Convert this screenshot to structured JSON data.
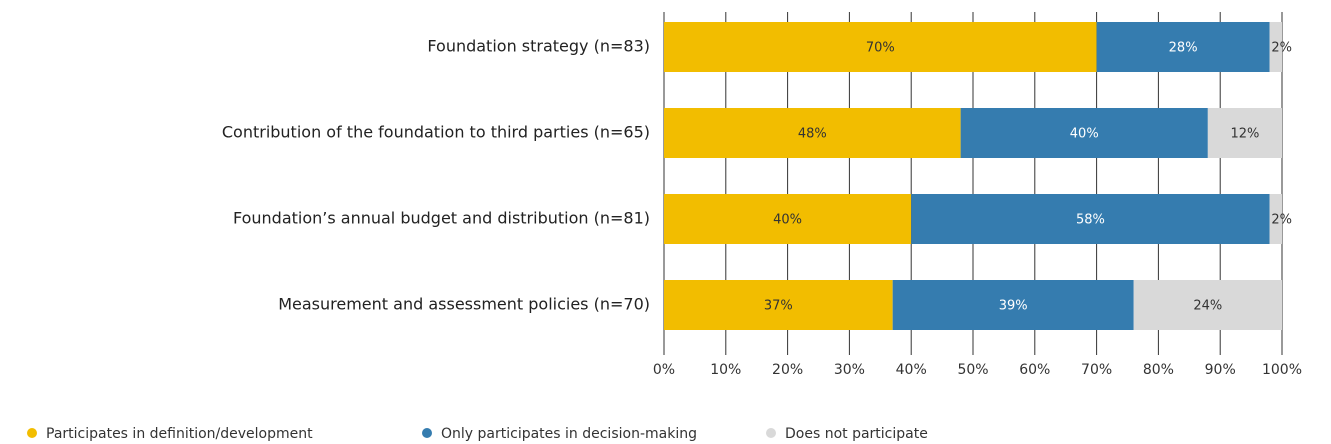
{
  "chart_data": {
    "type": "stacked_bar_horizontal",
    "categories": [
      "Foundation strategy (n=83)",
      "Contribution of the foundation to third parties (n=65)",
      "Foundation’s annual budget and distribution (n=81)",
      "Measurement and assessment policies (n=70)"
    ],
    "series": [
      {
        "name": "Participates in definition/development",
        "color": "#f2bd00",
        "values": [
          70,
          48,
          40,
          37
        ],
        "value_labels": [
          "70%",
          "48%",
          "40%",
          "37%"
        ]
      },
      {
        "name": "Only participates in decision-making",
        "color": "#357caf",
        "values": [
          28,
          40,
          58,
          39
        ],
        "value_labels": [
          "28%",
          "40%",
          "58%",
          "39%"
        ]
      },
      {
        "name": "Does not participate",
        "color": "#d9d9d9",
        "values": [
          2,
          12,
          2,
          24
        ],
        "value_labels": [
          "2%",
          "12%",
          "2%",
          "24%"
        ]
      }
    ],
    "xlim": [
      0,
      100
    ],
    "xticks": [
      {
        "value": 0,
        "label": "0%"
      },
      {
        "value": 10,
        "label": "10%"
      },
      {
        "value": 20,
        "label": "20%"
      },
      {
        "value": 30,
        "label": "30%"
      },
      {
        "value": 40,
        "label": "40%"
      },
      {
        "value": 50,
        "label": "50%"
      },
      {
        "value": 60,
        "label": "60%"
      },
      {
        "value": 70,
        "label": "70%"
      },
      {
        "value": 80,
        "label": "80%"
      },
      {
        "value": 90,
        "label": "90%"
      },
      {
        "value": 100,
        "label": "100%"
      }
    ],
    "grid": true,
    "legend": "bottom"
  }
}
